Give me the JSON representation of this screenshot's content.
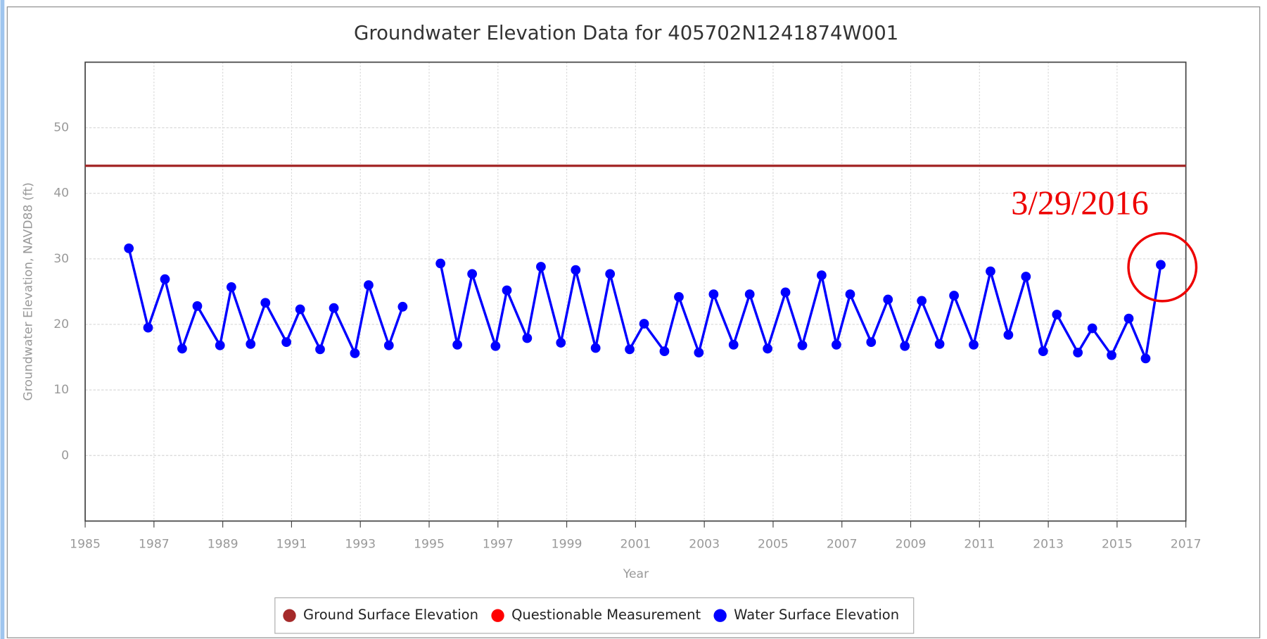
{
  "chart_data": {
    "type": "line",
    "title": "Groundwater Elevation Data for 405702N1241874W001",
    "xlabel": "Year",
    "ylabel": "Groundwater Elevation, NAVD88 (ft)",
    "xlim": [
      1985,
      2017
    ],
    "xticks": [
      1985,
      1987,
      1989,
      1991,
      1993,
      1995,
      1997,
      1999,
      2001,
      2003,
      2005,
      2007,
      2009,
      2011,
      2013,
      2015,
      2017
    ],
    "ylim": [
      -10,
      60
    ],
    "yticks": [
      0,
      10,
      20,
      30,
      40,
      50
    ],
    "grid": true,
    "legend": "bottom",
    "series": [
      {
        "name": "Ground Surface Elevation",
        "color": "#a52a2a",
        "markers": false,
        "x": [
          1985,
          2017
        ],
        "values": [
          44.2,
          44.2
        ]
      },
      {
        "name": "Questionable Measurement",
        "color": "#ff0000",
        "markers": true,
        "x": [],
        "values": []
      },
      {
        "name": "Water Surface Elevation",
        "color": "#0000ff",
        "markers": true,
        "x": [
          1986.27,
          1986.83,
          1987.32,
          1987.82,
          1988.26,
          1988.92,
          1989.25,
          1989.81,
          1990.24,
          1990.85,
          1991.25,
          1991.83,
          1992.23,
          1992.84,
          1993.24,
          1993.83,
          1994.23,
          1994.8,
          1995.33,
          1995.82,
          1996.25,
          1996.93,
          1997.26,
          1997.85,
          1998.25,
          1998.83,
          1999.26,
          1999.84,
          2000.26,
          2000.83,
          2001.25,
          2001.84,
          2002.26,
          2002.84,
          2003.27,
          2003.85,
          2004.32,
          2004.84,
          2005.36,
          2005.85,
          2006.41,
          2006.84,
          2007.24,
          2007.85,
          2008.34,
          2008.83,
          2009.32,
          2009.84,
          2010.26,
          2010.83,
          2011.32,
          2011.84,
          2012.35,
          2012.85,
          2013.25,
          2013.86,
          2014.28,
          2014.84,
          2015.34,
          2015.83,
          2016.27
        ],
        "values": [
          31.6,
          19.5,
          26.9,
          16.3,
          22.8,
          16.8,
          25.7,
          17.0,
          23.3,
          17.3,
          22.3,
          16.2,
          22.5,
          15.6,
          26.0,
          16.8,
          22.7,
          null,
          29.3,
          16.9,
          27.7,
          16.7,
          25.2,
          17.9,
          28.8,
          17.2,
          28.3,
          16.4,
          27.7,
          16.2,
          20.1,
          15.9,
          24.2,
          15.7,
          24.6,
          16.9,
          24.6,
          16.3,
          24.9,
          16.8,
          27.5,
          16.9,
          24.6,
          17.3,
          23.8,
          16.7,
          23.6,
          17.0,
          24.4,
          16.9,
          28.1,
          18.4,
          27.3,
          15.9,
          21.5,
          15.7,
          19.4,
          15.3,
          20.9,
          14.8,
          29.1
        ]
      }
    ],
    "annotations": [
      {
        "text": "3/29/2016",
        "x": 2016.27,
        "y": 29.1,
        "color": "#ee0000"
      }
    ]
  }
}
